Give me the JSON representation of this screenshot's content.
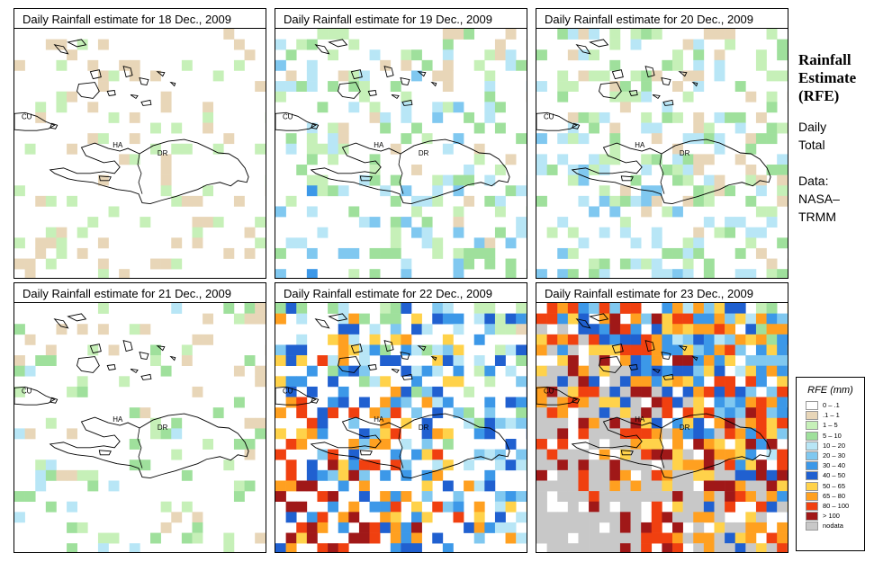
{
  "panels": [
    {
      "title": "Daily Rainfall estimate for  18 Dec., 2009",
      "seed": 18,
      "intensity": 0.18,
      "max_class": 4
    },
    {
      "title": "Daily Rainfall estimate for  19 Dec., 2009",
      "seed": 19,
      "intensity": 0.35,
      "max_class": 7
    },
    {
      "title": "Daily Rainfall estimate for  20 Dec., 2009",
      "seed": 20,
      "intensity": 0.4,
      "max_class": 6
    },
    {
      "title": "Daily Rainfall estimate for  21 Dec., 2009",
      "seed": 21,
      "intensity": 0.22,
      "max_class": 6
    },
    {
      "title": "Daily Rainfall estimate for  22 Dec., 2009",
      "seed": 22,
      "intensity": 0.6,
      "max_class": 11
    },
    {
      "title": "Daily Rainfall estimate for  23 Dec., 2009",
      "seed": 23,
      "intensity": 0.95,
      "max_class": 12
    }
  ],
  "map_labels": {
    "cu": "CU",
    "ha": "HA",
    "dr": "DR"
  },
  "side": {
    "title_lines": [
      "Rainfall",
      "Estimate",
      "(RFE)"
    ],
    "period_lines": [
      "Daily",
      "Total"
    ],
    "source_lines": [
      "Data:",
      "NASA–",
      "TRMM"
    ]
  },
  "legend": {
    "title": "RFE (mm)",
    "classes": [
      {
        "label": "0 – .1",
        "color": "#ffffff"
      },
      {
        "label": ".1 – 1",
        "color": "#e8d6b8"
      },
      {
        "label": "1 – 5",
        "color": "#c6f0b8"
      },
      {
        "label": "5 – 10",
        "color": "#9fe09c"
      },
      {
        "label": "10 – 20",
        "color": "#b8e6f6"
      },
      {
        "label": "20 – 30",
        "color": "#80c8f0"
      },
      {
        "label": "30 – 40",
        "color": "#3c98e8"
      },
      {
        "label": "40 – 50",
        "color": "#2060d0"
      },
      {
        "label": "50 – 65",
        "color": "#ffd24a"
      },
      {
        "label": "65 – 80",
        "color": "#ffa020"
      },
      {
        "label": "80 – 100",
        "color": "#f04010"
      },
      {
        "label": "> 100",
        "color": "#a01818"
      },
      {
        "label": "nodata",
        "color": "#c8c8c8"
      }
    ]
  }
}
